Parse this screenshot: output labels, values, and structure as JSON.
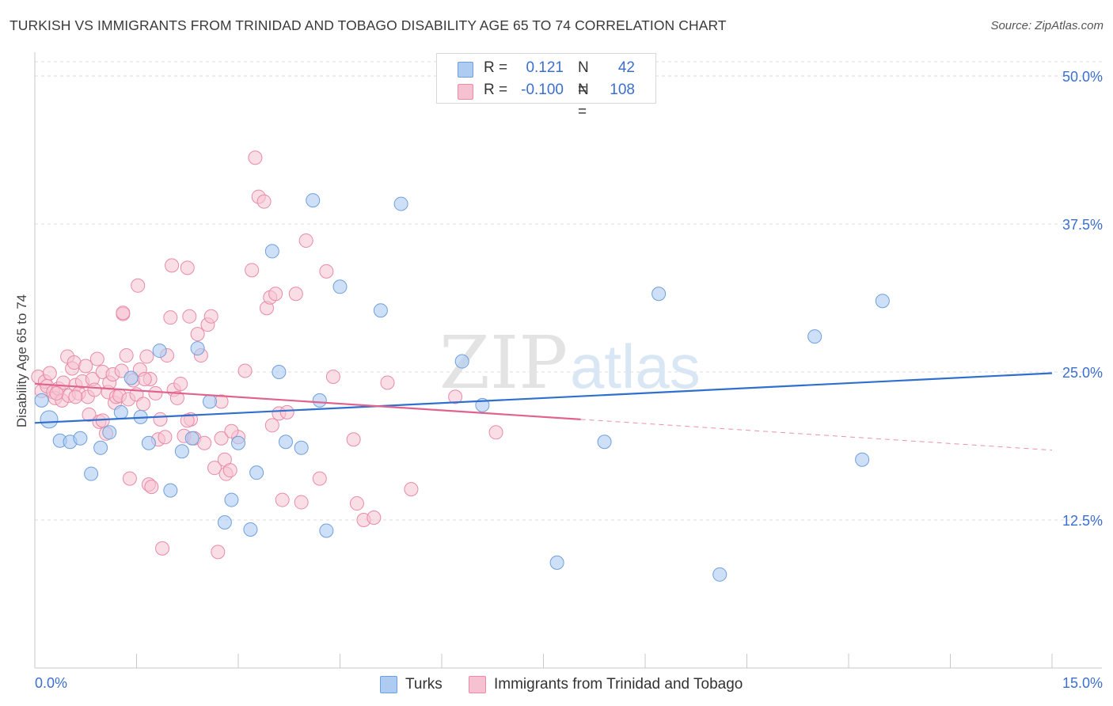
{
  "header": {
    "title": "TURKISH VS IMMIGRANTS FROM TRINIDAD AND TOBAGO DISABILITY AGE 65 TO 74 CORRELATION CHART",
    "source": "Source: ZipAtlas.com"
  },
  "watermark": {
    "part1": "ZIP",
    "part2": "atlas"
  },
  "legend": {
    "rows": [
      {
        "r_label": "R =",
        "r_value": "0.121",
        "n_label": "N =",
        "n_value": "42"
      },
      {
        "r_label": "R =",
        "r_value": "-0.100",
        "n_label": "N =",
        "n_value": "108"
      }
    ]
  },
  "bottom_legend": {
    "series1": "Turks",
    "series2": "Immigrants from Trinidad and Tobago"
  },
  "colors": {
    "blue_fill": "#aecbf2",
    "blue_stroke": "#6f9fdc",
    "blue_line": "#2f6fcf",
    "pink_fill": "#f6c2d2",
    "pink_stroke": "#e88aa8",
    "pink_line": "#e0638f",
    "grid": "#dcdcdc",
    "tick_label": "#3b6fd0"
  },
  "chart_data": {
    "type": "scatter",
    "title": "TURKISH VS IMMIGRANTS FROM TRINIDAD AND TOBAGO DISABILITY AGE 65 TO 74 CORRELATION CHART",
    "xlabel": "",
    "ylabel": "Disability Age 65 to 74",
    "xlim": [
      0,
      15
    ],
    "ylim": [
      0,
      50
    ],
    "x_tick_labels": [
      "0.0%",
      "15.0%"
    ],
    "y_tick_labels": [
      "12.5%",
      "25.0%",
      "37.5%",
      "50.0%"
    ],
    "y_ticks": [
      12.5,
      25.0,
      37.5,
      50.0
    ],
    "grid": true,
    "legend_position": "top-center",
    "series": [
      {
        "name": "Turks",
        "color": "#aecbf2",
        "trend": {
          "x": [
            0,
            15
          ],
          "y": [
            20.7,
            24.9
          ]
        },
        "points": [
          [
            0.21,
            21.0
          ],
          [
            0.37,
            19.2
          ],
          [
            0.52,
            19.1
          ],
          [
            0.67,
            19.4
          ],
          [
            0.83,
            16.4
          ],
          [
            0.97,
            18.6
          ],
          [
            1.1,
            19.9
          ],
          [
            1.27,
            21.6
          ],
          [
            1.42,
            24.5
          ],
          [
            1.56,
            21.2
          ],
          [
            1.68,
            19.0
          ],
          [
            1.84,
            26.8
          ],
          [
            2.0,
            15.0
          ],
          [
            2.17,
            18.3
          ],
          [
            2.32,
            19.4
          ],
          [
            2.4,
            27.0
          ],
          [
            2.58,
            22.5
          ],
          [
            2.8,
            12.3
          ],
          [
            2.9,
            14.2
          ],
          [
            3.0,
            19.0
          ],
          [
            3.18,
            11.7
          ],
          [
            3.27,
            16.5
          ],
          [
            3.5,
            35.2
          ],
          [
            3.7,
            19.1
          ],
          [
            3.6,
            25.0
          ],
          [
            3.93,
            18.6
          ],
          [
            4.1,
            39.5
          ],
          [
            4.2,
            22.6
          ],
          [
            4.3,
            11.6
          ],
          [
            4.5,
            32.2
          ],
          [
            5.1,
            30.2
          ],
          [
            5.4,
            39.2
          ],
          [
            6.3,
            25.9
          ],
          [
            6.6,
            22.2
          ],
          [
            7.7,
            8.9
          ],
          [
            8.4,
            19.1
          ],
          [
            9.2,
            31.6
          ],
          [
            10.1,
            7.9
          ],
          [
            11.5,
            28.0
          ],
          [
            12.2,
            17.6
          ],
          [
            12.5,
            31.0
          ],
          [
            0.1,
            22.6
          ]
        ]
      },
      {
        "name": "Immigrants from Trinidad and Tobago",
        "color": "#f6c2d2",
        "trend": {
          "x": [
            0,
            8.05
          ],
          "y": [
            24.0,
            21.0
          ],
          "dashed_to": [
            15,
            18.4
          ]
        },
        "points": [
          [
            0.05,
            24.6
          ],
          [
            0.1,
            23.4
          ],
          [
            0.15,
            24.2
          ],
          [
            0.18,
            23.8
          ],
          [
            0.22,
            24.9
          ],
          [
            0.27,
            23.3
          ],
          [
            0.3,
            22.8
          ],
          [
            0.35,
            23.6
          ],
          [
            0.4,
            22.6
          ],
          [
            0.42,
            24.1
          ],
          [
            0.48,
            26.3
          ],
          [
            0.5,
            23.0
          ],
          [
            0.55,
            25.3
          ],
          [
            0.58,
            25.8
          ],
          [
            0.6,
            23.9
          ],
          [
            0.65,
            23.2
          ],
          [
            0.7,
            24.2
          ],
          [
            0.75,
            25.5
          ],
          [
            0.78,
            22.9
          ],
          [
            0.8,
            21.4
          ],
          [
            0.85,
            24.4
          ],
          [
            0.88,
            23.5
          ],
          [
            0.92,
            26.1
          ],
          [
            0.95,
            20.8
          ],
          [
            1.0,
            25.0
          ],
          [
            1.05,
            19.8
          ],
          [
            1.08,
            23.3
          ],
          [
            1.1,
            24.1
          ],
          [
            1.15,
            24.8
          ],
          [
            1.18,
            22.4
          ],
          [
            1.2,
            22.9
          ],
          [
            1.25,
            23.0
          ],
          [
            1.28,
            25.1
          ],
          [
            1.3,
            29.9
          ],
          [
            1.35,
            26.4
          ],
          [
            1.38,
            22.7
          ],
          [
            1.4,
            16.0
          ],
          [
            1.45,
            24.3
          ],
          [
            1.5,
            23.1
          ],
          [
            1.52,
            32.3
          ],
          [
            1.55,
            25.2
          ],
          [
            1.6,
            22.3
          ],
          [
            1.65,
            26.3
          ],
          [
            1.68,
            15.5
          ],
          [
            1.7,
            24.4
          ],
          [
            1.72,
            15.3
          ],
          [
            1.78,
            23.2
          ],
          [
            1.82,
            19.3
          ],
          [
            1.85,
            21.0
          ],
          [
            1.88,
            10.1
          ],
          [
            1.92,
            19.5
          ],
          [
            1.95,
            26.4
          ],
          [
            2.0,
            29.6
          ],
          [
            2.02,
            34.0
          ],
          [
            2.05,
            23.5
          ],
          [
            2.1,
            22.8
          ],
          [
            2.15,
            24.0
          ],
          [
            2.2,
            19.6
          ],
          [
            2.25,
            33.8
          ],
          [
            2.28,
            29.7
          ],
          [
            2.3,
            21.0
          ],
          [
            2.35,
            19.4
          ],
          [
            2.4,
            28.2
          ],
          [
            2.45,
            26.4
          ],
          [
            2.5,
            19.0
          ],
          [
            2.55,
            29.0
          ],
          [
            2.6,
            29.7
          ],
          [
            2.65,
            16.9
          ],
          [
            2.7,
            9.8
          ],
          [
            2.75,
            22.5
          ],
          [
            2.8,
            17.6
          ],
          [
            2.82,
            16.4
          ],
          [
            2.88,
            16.7
          ],
          [
            3.0,
            19.5
          ],
          [
            3.1,
            25.1
          ],
          [
            3.2,
            33.6
          ],
          [
            3.25,
            43.1
          ],
          [
            3.3,
            39.8
          ],
          [
            3.38,
            39.4
          ],
          [
            3.42,
            30.4
          ],
          [
            3.47,
            31.3
          ],
          [
            3.55,
            31.6
          ],
          [
            3.6,
            21.5
          ],
          [
            3.65,
            14.2
          ],
          [
            3.72,
            21.6
          ],
          [
            3.85,
            31.6
          ],
          [
            3.93,
            14.0
          ],
          [
            4.0,
            36.1
          ],
          [
            4.2,
            16.0
          ],
          [
            4.3,
            33.5
          ],
          [
            4.4,
            24.6
          ],
          [
            4.7,
            19.3
          ],
          [
            4.75,
            13.9
          ],
          [
            4.85,
            12.5
          ],
          [
            5.0,
            12.7
          ],
          [
            5.2,
            24.1
          ],
          [
            5.55,
            15.1
          ],
          [
            6.2,
            22.9
          ],
          [
            6.8,
            19.9
          ],
          [
            1.3,
            30.0
          ],
          [
            0.6,
            22.9
          ],
          [
            1.0,
            20.9
          ],
          [
            2.25,
            20.9
          ],
          [
            2.75,
            19.4
          ],
          [
            0.32,
            23.2
          ],
          [
            1.62,
            24.4
          ],
          [
            2.9,
            20.0
          ],
          [
            3.5,
            20.5
          ]
        ]
      }
    ]
  }
}
